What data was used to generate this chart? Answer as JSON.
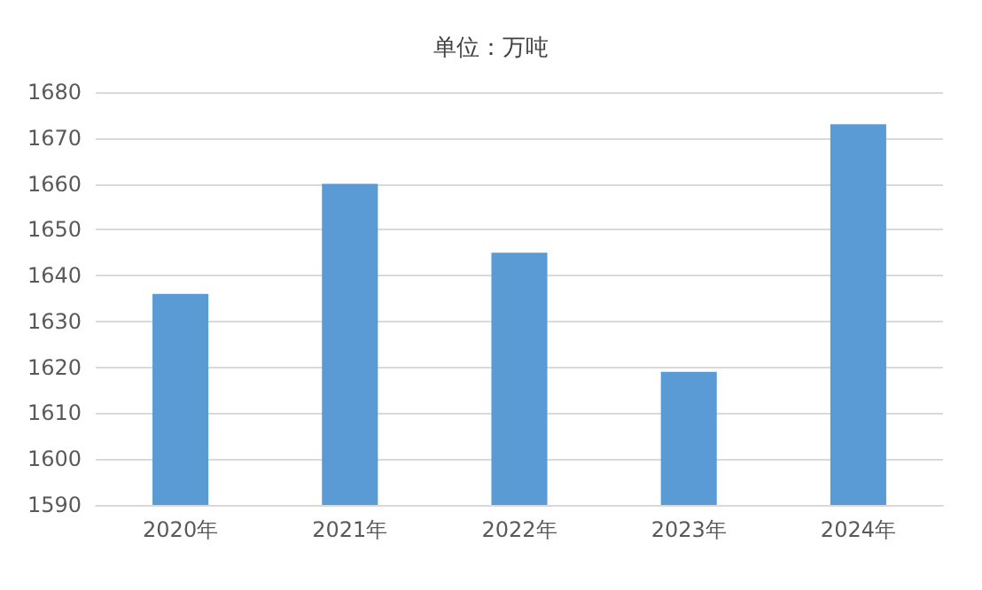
{
  "chart_data": {
    "type": "bar",
    "title": "单位：万吨",
    "categories": [
      "2020年",
      "2021年",
      "2022年",
      "2023年",
      "2024年"
    ],
    "values": [
      1636,
      1660,
      1645,
      1619,
      1673
    ],
    "color": "#5b9bd5",
    "ylim": [
      1590,
      1680
    ],
    "yticks": [
      1590,
      1600,
      1610,
      1620,
      1630,
      1640,
      1650,
      1660,
      1670,
      1680
    ],
    "grid": "y"
  }
}
